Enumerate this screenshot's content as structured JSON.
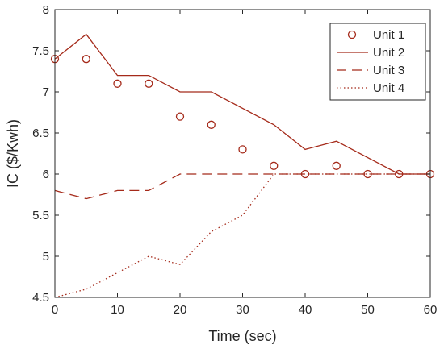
{
  "chart_data": {
    "type": "line",
    "xlabel": "Time (sec)",
    "ylabel": "IC ($/Kwh)",
    "xlim": [
      0,
      60
    ],
    "ylim": [
      4.5,
      8
    ],
    "xticks": [
      "0",
      "10",
      "20",
      "30",
      "40",
      "50",
      "60"
    ],
    "yticks": [
      "4.5",
      "5",
      "5.5",
      "6",
      "6.5",
      "7",
      "7.5",
      "8"
    ],
    "grid": false,
    "legend_position": "top-right",
    "color": "#a52a1a",
    "x": [
      0,
      5,
      10,
      15,
      20,
      25,
      30,
      35,
      40,
      45,
      50,
      55,
      60
    ],
    "series": [
      {
        "name": "Unit 1",
        "style": "circle-markers",
        "values": [
          7.4,
          7.4,
          7.1,
          7.1,
          6.7,
          6.6,
          6.3,
          6.1,
          6.0,
          6.1,
          6.0,
          6.0,
          6.0
        ]
      },
      {
        "name": "Unit 2",
        "style": "solid",
        "values": [
          7.4,
          7.7,
          7.2,
          7.2,
          7.0,
          7.0,
          6.8,
          6.6,
          6.3,
          6.4,
          6.2,
          6.0,
          6.0
        ]
      },
      {
        "name": "Unit 3",
        "style": "dashed",
        "values": [
          5.8,
          5.7,
          5.8,
          5.8,
          6.0,
          6.0,
          6.0,
          6.0,
          6.0,
          6.0,
          6.0,
          6.0,
          6.0
        ]
      },
      {
        "name": "Unit 4",
        "style": "dotted",
        "values": [
          4.5,
          4.6,
          4.8,
          5.0,
          4.9,
          5.3,
          5.5,
          6.0,
          6.0,
          6.0,
          6.0,
          6.0,
          6.0
        ]
      }
    ]
  }
}
